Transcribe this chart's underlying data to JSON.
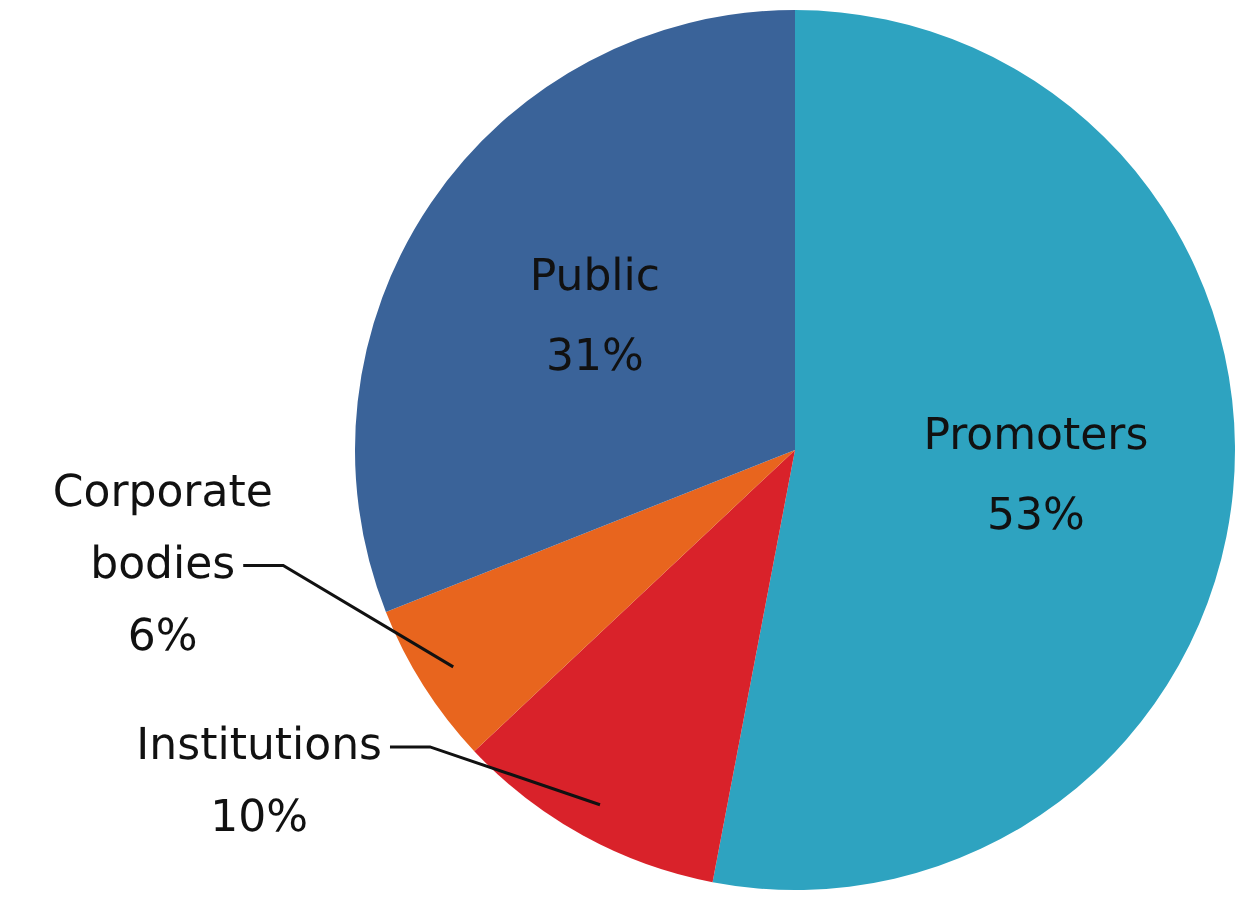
{
  "chart_data": {
    "type": "pie",
    "categories": [
      "Promoters",
      "Institutions",
      "Corporate bodies",
      "Public"
    ],
    "values": [
      53,
      10,
      6,
      31
    ],
    "value_labels": [
      "53%",
      "10%",
      "6%",
      "31%"
    ],
    "colors": [
      "#2ea3c0",
      "#d9222a",
      "#e8651e",
      "#3a6399"
    ],
    "legend": false
  }
}
